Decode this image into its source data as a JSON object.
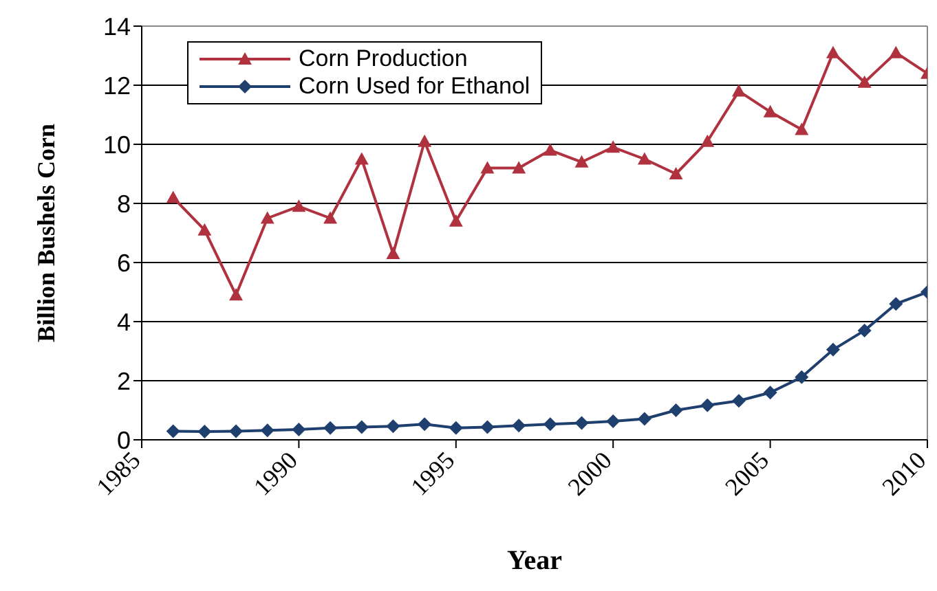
{
  "chart_data": {
    "type": "line",
    "xlabel": "Year",
    "ylabel": "Billion Bushels Corn",
    "x": [
      1986,
      1987,
      1988,
      1989,
      1990,
      1991,
      1992,
      1993,
      1994,
      1995,
      1996,
      1997,
      1998,
      1999,
      2000,
      2001,
      2002,
      2003,
      2004,
      2005,
      2006,
      2007,
      2008,
      2009,
      2010
    ],
    "series": [
      {
        "name": "Corn Production",
        "color": "#b0323f",
        "marker": "triangle",
        "values": [
          8.2,
          7.1,
          4.9,
          7.5,
          7.9,
          7.5,
          9.5,
          6.3,
          10.1,
          7.4,
          9.2,
          9.2,
          9.8,
          9.4,
          9.9,
          9.5,
          9.0,
          10.1,
          11.8,
          11.1,
          10.5,
          13.1,
          12.1,
          13.1,
          12.4
        ]
      },
      {
        "name": "Corn Used for Ethanol",
        "color": "#1f3f6e",
        "marker": "diamond",
        "values": [
          0.29,
          0.28,
          0.29,
          0.32,
          0.35,
          0.4,
          0.43,
          0.46,
          0.53,
          0.4,
          0.43,
          0.48,
          0.53,
          0.57,
          0.63,
          0.71,
          1.0,
          1.17,
          1.32,
          1.6,
          2.12,
          3.05,
          3.7,
          4.6,
          5.0
        ]
      }
    ],
    "xlim": [
      1985,
      2010
    ],
    "xticks": [
      1985,
      1990,
      1995,
      2000,
      2005,
      2010
    ],
    "ylim": [
      0,
      14
    ],
    "yticks": [
      0,
      2,
      4,
      6,
      8,
      10,
      12,
      14
    ],
    "grid": "y",
    "legend": "top left"
  }
}
